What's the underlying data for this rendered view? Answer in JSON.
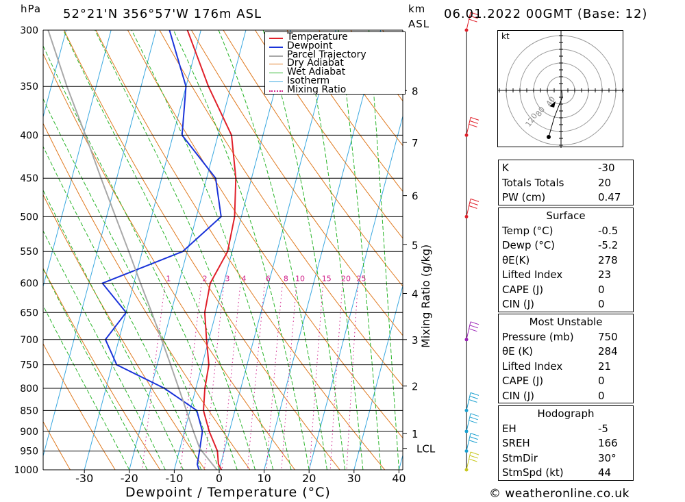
{
  "header": {
    "pressure_unit": "hPa",
    "location": "52°21'N 356°57'W 176m ASL",
    "height_unit_line1": "km",
    "height_unit_line2": "ASL",
    "datetime": "06.01.2022 00GMT (Base: 12)",
    "copyright": "© weatheronline.co.uk"
  },
  "chart_data": {
    "type": "line",
    "title": "Skew-T log-P diagram",
    "xlabel": "Dewpoint / Temperature (°C)",
    "ylabel": "hPa",
    "xlim": [
      -40,
      40
    ],
    "x_ticks": [
      "-30",
      "-20",
      "-10",
      "0",
      "10",
      "20",
      "30",
      "40"
    ],
    "x_tick_values": [
      -30,
      -20,
      -10,
      0,
      10,
      20,
      30,
      40
    ],
    "pressure_levels": [
      300,
      350,
      400,
      450,
      500,
      550,
      600,
      650,
      700,
      750,
      800,
      850,
      900,
      950,
      1000
    ],
    "km_ticks": [
      {
        "label": "8",
        "p": 354
      },
      {
        "label": "7",
        "p": 408
      },
      {
        "label": "6",
        "p": 472
      },
      {
        "label": "5",
        "p": 540
      },
      {
        "label": "4",
        "p": 617
      },
      {
        "label": "3",
        "p": 700
      },
      {
        "label": "2",
        "p": 795
      },
      {
        "label": "1",
        "p": 905
      },
      {
        "label": "LCL",
        "p": 943
      }
    ],
    "mixing_ratio_label": "Mixing Ratio (g/kg)",
    "mixing_ratio_values": [
      "1",
      "2",
      "3",
      "4",
      "6",
      "8",
      "10",
      "15",
      "20",
      "25"
    ],
    "legend": [
      "Temperature",
      "Dewpoint",
      "Parcel Trajectory",
      "Dry Adiabat",
      "Wet Adiabat",
      "Isotherm",
      "Mixing Ratio"
    ],
    "series": [
      {
        "name": "Temperature",
        "color": "#e0202a",
        "points": [
          [
            1000,
            0.5
          ],
          [
            985,
            -0.5
          ],
          [
            950,
            -1.5
          ],
          [
            900,
            -4.5
          ],
          [
            850,
            -7
          ],
          [
            800,
            -8
          ],
          [
            750,
            -8.5
          ],
          [
            700,
            -10.5
          ],
          [
            650,
            -12.5
          ],
          [
            600,
            -13
          ],
          [
            550,
            -11
          ],
          [
            500,
            -11.5
          ],
          [
            450,
            -13.5
          ],
          [
            400,
            -17
          ],
          [
            350,
            -25
          ],
          [
            300,
            -33
          ]
        ]
      },
      {
        "name": "Dewpoint",
        "color": "#1a33d9",
        "points": [
          [
            1000,
            -4.5
          ],
          [
            985,
            -5.2
          ],
          [
            950,
            -5.5
          ],
          [
            900,
            -6
          ],
          [
            850,
            -8.5
          ],
          [
            800,
            -17
          ],
          [
            750,
            -29
          ],
          [
            700,
            -33
          ],
          [
            650,
            -30
          ],
          [
            600,
            -37
          ],
          [
            550,
            -21
          ],
          [
            500,
            -14.5
          ],
          [
            450,
            -18
          ],
          [
            400,
            -28
          ],
          [
            350,
            -30
          ],
          [
            300,
            -37
          ]
        ]
      },
      {
        "name": "Parcel Trajectory",
        "color": "#a8a8a8",
        "points": [
          [
            1000,
            -0.5
          ],
          [
            943,
            -5.6
          ],
          [
            900,
            -8
          ],
          [
            850,
            -10.8
          ],
          [
            800,
            -13.8
          ],
          [
            750,
            -17
          ],
          [
            700,
            -20.5
          ],
          [
            650,
            -24.3
          ],
          [
            600,
            -28.5
          ],
          [
            550,
            -33
          ],
          [
            500,
            -38
          ],
          [
            450,
            -43.5
          ],
          [
            400,
            -49.5
          ],
          [
            350,
            -56.5
          ],
          [
            300,
            -64
          ]
        ]
      }
    ],
    "wind_barbs": [
      {
        "p": 300,
        "color": "#e0202a"
      },
      {
        "p": 400,
        "color": "#e0202a"
      },
      {
        "p": 500,
        "color": "#e0202a"
      },
      {
        "p": 700,
        "color": "#9a1fb5"
      },
      {
        "p": 850,
        "color": "#1aa0d0"
      },
      {
        "p": 900,
        "color": "#1aa0d0"
      },
      {
        "p": 950,
        "color": "#1aa0d0"
      },
      {
        "p": 1000,
        "color": "#c8c820"
      }
    ]
  },
  "hodograph": {
    "unit": "kt",
    "ring_labels": [
      "40",
      "80",
      "120"
    ]
  },
  "indices": {
    "basic": [
      {
        "label": "K",
        "value": "-30"
      },
      {
        "label": "Totals Totals",
        "value": "20"
      },
      {
        "label": "PW (cm)",
        "value": "0.47"
      }
    ],
    "surface_title": "Surface",
    "surface": [
      {
        "label": "Temp (°C)",
        "value": "-0.5"
      },
      {
        "label": "Dewp (°C)",
        "value": "-5.2"
      },
      {
        "label": "θE(K)",
        "value": "278"
      },
      {
        "label": "Lifted Index",
        "value": "23"
      },
      {
        "label": "CAPE (J)",
        "value": "0"
      },
      {
        "label": "CIN (J)",
        "value": "0"
      }
    ],
    "unstable_title": "Most Unstable",
    "unstable": [
      {
        "label": "Pressure (mb)",
        "value": "750"
      },
      {
        "label": "θE (K)",
        "value": "284"
      },
      {
        "label": "Lifted Index",
        "value": "21"
      },
      {
        "label": "CAPE (J)",
        "value": "0"
      },
      {
        "label": "CIN (J)",
        "value": "0"
      }
    ],
    "hodograph_title": "Hodograph",
    "hodograph": [
      {
        "label": "EH",
        "value": "-5"
      },
      {
        "label": "SREH",
        "value": "166"
      },
      {
        "label": "StmDir",
        "value": "30°"
      },
      {
        "label": "StmSpd (kt)",
        "value": "44"
      }
    ]
  }
}
